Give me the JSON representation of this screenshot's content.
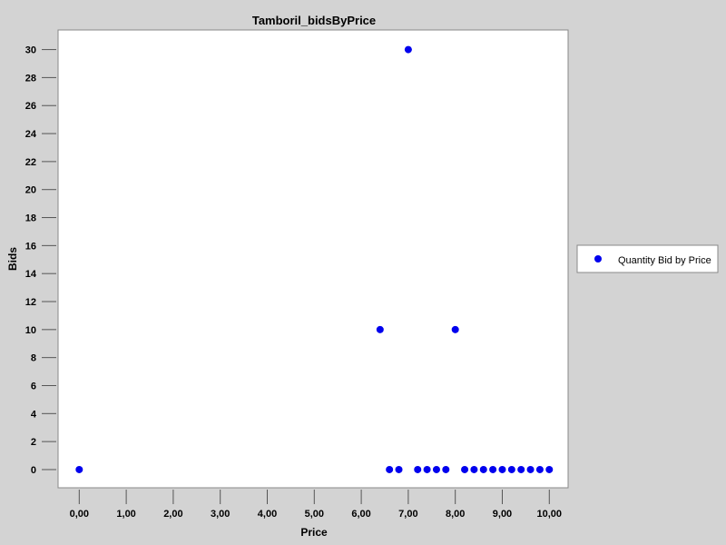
{
  "chart_data": {
    "type": "scatter",
    "title": "Tamboril_bidsByPrice",
    "xlabel": "Price",
    "ylabel": "Bids",
    "xlim": [
      -0.45,
      10.4
    ],
    "ylim": [
      -1.3,
      31.4
    ],
    "x_ticks": [
      0,
      1,
      2,
      3,
      4,
      5,
      6,
      7,
      8,
      9,
      10
    ],
    "x_tick_labels": [
      "0,00",
      "1,00",
      "2,00",
      "3,00",
      "4,00",
      "5,00",
      "6,00",
      "7,00",
      "8,00",
      "9,00",
      "10,00"
    ],
    "y_ticks": [
      0,
      2,
      4,
      6,
      8,
      10,
      12,
      14,
      16,
      18,
      20,
      22,
      24,
      26,
      28,
      30
    ],
    "y_tick_labels": [
      "0",
      "2",
      "4",
      "6",
      "8",
      "10",
      "12",
      "14",
      "16",
      "18",
      "20",
      "22",
      "24",
      "26",
      "28",
      "30"
    ],
    "grid": false,
    "legend_position": "right",
    "series": [
      {
        "name": "Quantity Bid by Price",
        "color": "#0000ee",
        "x": [
          0.0,
          6.4,
          6.6,
          6.8,
          7.0,
          7.2,
          7.4,
          7.6,
          7.8,
          8.0,
          8.2,
          8.4,
          8.6,
          8.8,
          9.0,
          9.2,
          9.4,
          9.6,
          9.8,
          10.0
        ],
        "y": [
          0,
          10,
          0,
          0,
          30,
          0,
          0,
          0,
          0,
          10,
          0,
          0,
          0,
          0,
          0,
          0,
          0,
          0,
          0,
          0
        ]
      }
    ]
  }
}
